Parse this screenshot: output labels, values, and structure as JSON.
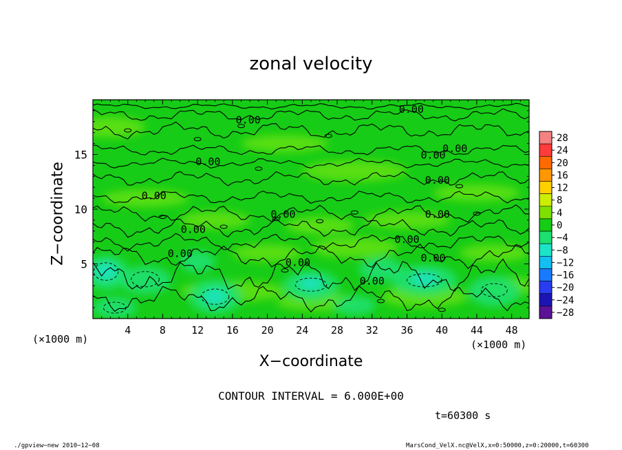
{
  "chart_data": {
    "type": "heatmap",
    "title": "zonal velocity",
    "xlabel": "X−coordinate",
    "ylabel": "Z−coordinate",
    "x_unit_left": "(×1000 m)",
    "x_unit_right": "(×1000 m)",
    "xlim": [
      0,
      50
    ],
    "ylim": [
      0,
      20
    ],
    "x_ticks": [
      4,
      8,
      12,
      16,
      20,
      24,
      28,
      32,
      36,
      40,
      44,
      48
    ],
    "y_ticks": [
      5,
      10,
      15
    ],
    "colorbar": {
      "levels": [
        28,
        24,
        20,
        16,
        12,
        8,
        4,
        0,
        -4,
        -8,
        -12,
        -16,
        -20,
        -24,
        -28
      ],
      "labels": [
        "28",
        "24",
        "20",
        "16",
        "12",
        "8",
        "4",
        "0",
        "−4",
        "−8",
        "−12",
        "−16",
        "−20",
        "−24",
        "−28"
      ],
      "colors": [
        "#f58282",
        "#ff3c3c",
        "#ff6a00",
        "#ff9800",
        "#ffd000",
        "#ccee00",
        "#7ee000",
        "#16cc16",
        "#1ce070",
        "#1ce4c8",
        "#12bff0",
        "#1a7aff",
        "#2a3cf0",
        "#1c14b4",
        "#5a1296"
      ]
    },
    "contour_labels": [
      {
        "x": 17.8,
        "z": 18.1,
        "text": "0.00"
      },
      {
        "x": 36.5,
        "z": 19.1,
        "text": "0.00"
      },
      {
        "x": 41.5,
        "z": 15.5,
        "text": "0.00"
      },
      {
        "x": 39.0,
        "z": 14.9,
        "text": "0.00"
      },
      {
        "x": 13.2,
        "z": 14.3,
        "text": "0.00"
      },
      {
        "x": 39.5,
        "z": 12.6,
        "text": "0.00"
      },
      {
        "x": 7.0,
        "z": 11.2,
        "text": "0.00"
      },
      {
        "x": 21.8,
        "z": 9.5,
        "text": "0.00"
      },
      {
        "x": 39.5,
        "z": 9.5,
        "text": "0.00"
      },
      {
        "x": 11.5,
        "z": 8.1,
        "text": "0.00"
      },
      {
        "x": 36.0,
        "z": 7.2,
        "text": "0.00"
      },
      {
        "x": 10.0,
        "z": 5.9,
        "text": "0.00"
      },
      {
        "x": 23.5,
        "z": 5.1,
        "text": "0.00"
      },
      {
        "x": 39.0,
        "z": 5.5,
        "text": "0.00"
      },
      {
        "x": 32.0,
        "z": 3.4,
        "text": "0.00"
      }
    ],
    "contour_interval": "CONTOUR INTERVAL = 6.000E+00",
    "time_label": "t=60300 s"
  },
  "footer": {
    "left": "./gpview−new   2010−12−08",
    "right": "MarsCond_VelX.nc@VelX,x=0:50000,z=0:20000,t=60300"
  }
}
